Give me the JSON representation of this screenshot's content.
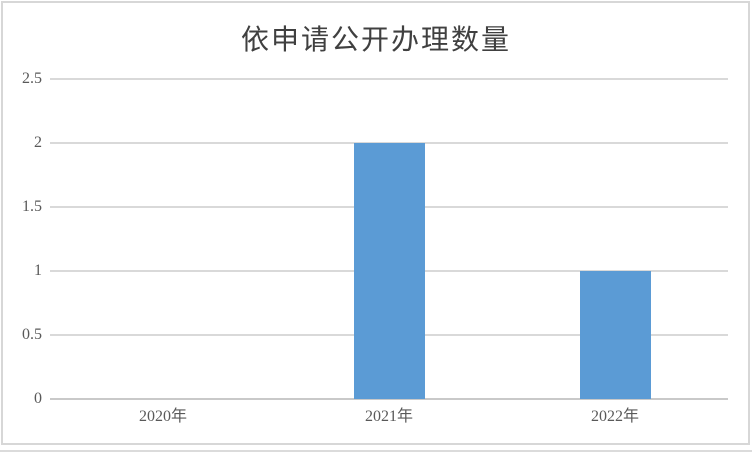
{
  "chart_data": {
    "type": "bar",
    "title": "依申请公开办理数量",
    "xlabel": "",
    "ylabel": "",
    "categories": [
      "2020年",
      "2021年",
      "2022年"
    ],
    "values": [
      0,
      2,
      1
    ],
    "ylim": [
      0,
      2.5
    ],
    "yticks": [
      {
        "value": 0,
        "label": "0"
      },
      {
        "value": 0.5,
        "label": "0.5"
      },
      {
        "value": 1,
        "label": "1"
      },
      {
        "value": 1.5,
        "label": "1.5"
      },
      {
        "value": 2,
        "label": "2"
      },
      {
        "value": 2.5,
        "label": "2.5"
      }
    ],
    "grid": true,
    "legend": "none",
    "colors": {
      "bar": "#5B9BD5",
      "gridline": "#D9D9D9",
      "axis_line": "#C9C9C9",
      "tick_label": "#595959",
      "title": "#404040",
      "frame_border": "#D7D7D7",
      "background": "#FFFFFF"
    }
  }
}
